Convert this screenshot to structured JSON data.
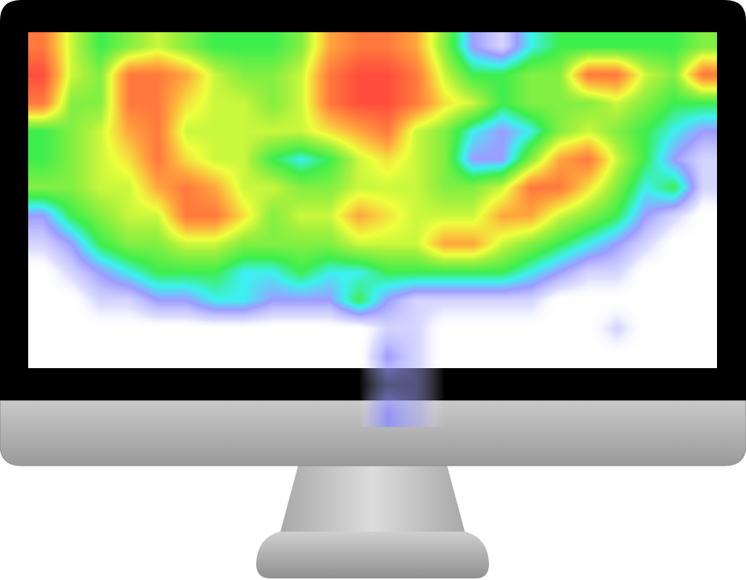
{
  "chart_data": {
    "type": "heatmap",
    "tick_labels": false,
    "grid": false,
    "cells": [
      [
        9,
        6,
        4,
        5,
        6,
        5,
        4,
        4,
        4,
        5,
        8,
        9,
        9,
        8,
        5,
        2,
        1,
        3,
        4,
        4,
        4,
        4,
        4,
        5
      ],
      [
        10,
        6,
        5,
        9,
        9,
        8,
        6,
        5,
        5,
        6,
        9,
        10,
        10,
        9,
        6,
        4,
        4,
        5,
        5,
        9,
        9,
        6,
        5,
        9
      ],
      [
        9,
        5,
        5,
        9,
        9,
        7,
        6,
        6,
        5,
        6,
        9,
        10,
        10,
        9,
        7,
        6,
        4,
        5,
        5,
        5,
        6,
        5,
        4,
        4
      ],
      [
        4,
        5,
        6,
        8,
        9,
        6,
        6,
        6,
        6,
        6,
        7,
        8,
        9,
        6,
        5,
        3,
        2,
        3,
        5,
        6,
        5,
        4,
        3,
        2
      ],
      [
        4,
        5,
        6,
        7,
        9,
        7,
        6,
        6,
        4,
        3,
        4,
        6,
        7,
        6,
        5,
        2,
        2,
        5,
        8,
        9,
        6,
        4,
        2,
        1
      ],
      [
        5,
        5,
        6,
        6,
        8,
        9,
        8,
        6,
        6,
        5,
        5,
        6,
        6,
        6,
        5,
        5,
        6,
        9,
        9,
        7,
        5,
        3,
        4,
        1
      ],
      [
        2,
        4,
        5,
        6,
        6,
        9,
        9,
        7,
        5,
        6,
        6,
        8,
        7,
        6,
        6,
        6,
        8,
        8,
        6,
        5,
        4,
        2,
        1,
        0
      ],
      [
        1,
        2,
        4,
        5,
        5,
        6,
        6,
        5,
        5,
        5,
        5,
        6,
        6,
        6,
        8,
        8,
        6,
        5,
        4,
        3,
        2,
        1,
        0,
        0
      ],
      [
        0,
        1,
        2,
        3,
        4,
        4,
        4,
        3,
        3,
        4,
        3,
        3,
        4,
        4,
        4,
        4,
        4,
        3,
        2,
        1,
        1,
        0,
        0,
        0
      ],
      [
        0,
        0,
        1,
        1,
        2,
        2,
        3,
        3,
        2,
        2,
        2,
        4,
        2,
        1,
        1,
        1,
        1,
        1,
        0,
        0,
        0,
        0,
        0,
        0
      ],
      [
        0,
        0,
        0,
        0,
        0,
        0,
        0,
        0,
        0,
        0,
        0,
        0,
        1,
        1,
        0,
        0,
        0,
        0,
        0,
        0,
        1,
        0,
        0,
        0
      ],
      [
        0,
        0,
        0,
        0,
        0,
        0,
        0,
        0,
        0,
        0,
        0,
        0,
        2,
        1,
        0,
        0,
        0,
        0,
        0,
        0,
        0,
        0,
        0,
        0
      ],
      [
        0,
        0,
        0,
        0,
        0,
        0,
        0,
        0,
        0,
        0,
        0,
        0,
        1,
        1,
        0,
        0,
        0,
        0,
        0,
        0,
        0,
        0,
        0,
        0
      ],
      [
        0,
        0,
        0,
        0,
        0,
        0,
        0,
        0,
        0,
        0,
        0,
        0,
        2,
        1,
        0,
        0,
        0,
        0,
        0,
        0,
        0,
        0,
        0,
        0
      ]
    ]
  }
}
